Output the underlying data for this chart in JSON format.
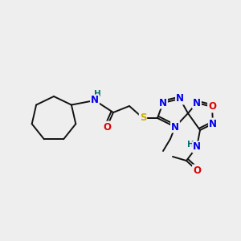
{
  "background_color": "#eeeeee",
  "atom_colors": {
    "C": "#000000",
    "N": "#0000ee",
    "O": "#dd0000",
    "S": "#ccaa00",
    "H": "#007070"
  },
  "bond_color": "#111111",
  "font_size_atoms": 8.5,
  "fig_size": [
    3.0,
    3.0
  ],
  "dpi": 100
}
